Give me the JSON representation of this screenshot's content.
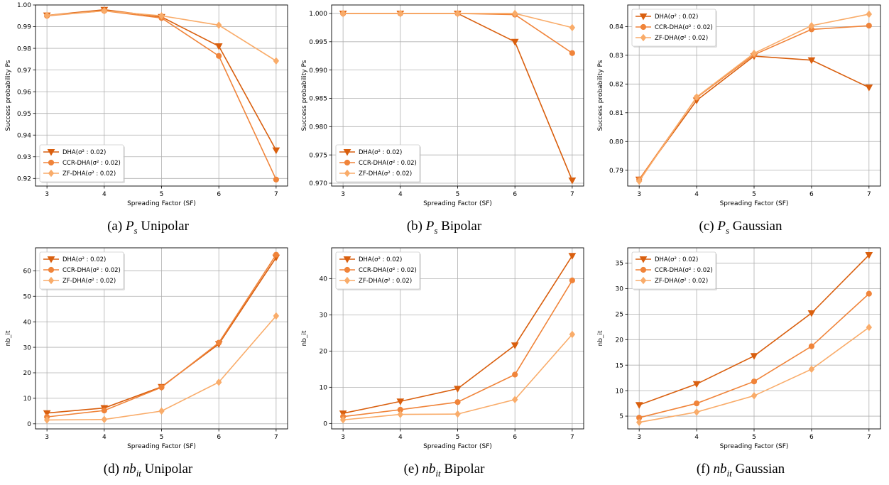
{
  "colors": {
    "dha": "#d95f0e",
    "ccr": "#f0843a",
    "zf": "#f9ac6a",
    "grid": "#b0b0b0"
  },
  "legend": [
    "DHA(σ² : 0.02)",
    "CCR-DHA(σ² : 0.02)",
    "ZF-DHA(σ² : 0.02)"
  ],
  "chart_data": [
    {
      "type": "line",
      "caption": {
        "label": "(a)",
        "sym": "P",
        "sub": "s",
        "text": "Unipolar"
      },
      "xlabel": "Spreading Factor (SF)",
      "ylabel": "Success probability Ps",
      "x": [
        3,
        4,
        5,
        6,
        7
      ],
      "xticks": [
        "3",
        "4",
        "5",
        "6",
        "7"
      ],
      "ylim": [
        0.9165,
        1.0
      ],
      "yticks": [
        "0.92",
        "0.93",
        "0.94",
        "0.95",
        "0.96",
        "0.97",
        "0.98",
        "0.99",
        "1.00"
      ],
      "grid": true,
      "legend_pos": "lower-left",
      "series": [
        {
          "name": "DHA(σ² : 0.02)",
          "values": [
            0.9952,
            0.9978,
            0.9945,
            0.981,
            0.933
          ]
        },
        {
          "name": "CCR-DHA(σ² : 0.02)",
          "values": [
            0.995,
            0.9973,
            0.994,
            0.9765,
            0.9195
          ]
        },
        {
          "name": "ZF-DHA(σ² : 0.02)",
          "values": [
            0.9952,
            0.9973,
            0.995,
            0.9907,
            0.9742
          ]
        }
      ]
    },
    {
      "type": "line",
      "caption": {
        "label": "(b)",
        "sym": "P",
        "sub": "s",
        "text": "Bipolar"
      },
      "xlabel": "Spreading Factor (SF)",
      "ylabel": "Success probability Ps",
      "x": [
        3,
        4,
        5,
        6,
        7
      ],
      "xticks": [
        "3",
        "4",
        "5",
        "6",
        "7"
      ],
      "ylim": [
        0.9695,
        1.0015
      ],
      "yticks": [
        "0.970",
        "0.975",
        "0.980",
        "0.985",
        "0.990",
        "0.995",
        "1.000"
      ],
      "grid": true,
      "legend_pos": "lower-left",
      "series": [
        {
          "name": "DHA(σ² : 0.02)",
          "values": [
            1.0,
            1.0,
            1.0,
            0.995,
            0.9705
          ]
        },
        {
          "name": "CCR-DHA(σ² : 0.02)",
          "values": [
            1.0,
            1.0,
            1.0,
            0.9998,
            0.993
          ]
        },
        {
          "name": "ZF-DHA(σ² : 0.02)",
          "values": [
            1.0,
            1.0,
            1.0,
            1.0,
            0.9975
          ]
        }
      ]
    },
    {
      "type": "line",
      "caption": {
        "label": "(c)",
        "sym": "P",
        "sub": "s",
        "text": "Gaussian"
      },
      "xlabel": "Spreading Factor (SF)",
      "ylabel": "Success probability Ps",
      "x": [
        3,
        4,
        5,
        6,
        7
      ],
      "xticks": [
        "3",
        "4",
        "5",
        "6",
        "7"
      ],
      "ylim": [
        0.7845,
        0.8475
      ],
      "yticks": [
        "0.79",
        "0.80",
        "0.81",
        "0.82",
        "0.83",
        "0.84"
      ],
      "grid": true,
      "legend_pos": "upper-left",
      "series": [
        {
          "name": "DHA(σ² : 0.02)",
          "values": [
            0.7868,
            0.8143,
            0.8297,
            0.8283,
            0.8188
          ]
        },
        {
          "name": "CCR-DHA(σ² : 0.02)",
          "values": [
            0.7868,
            0.8153,
            0.8302,
            0.839,
            0.8403
          ]
        },
        {
          "name": "ZF-DHA(σ² : 0.02)",
          "values": [
            0.7862,
            0.8155,
            0.8307,
            0.8403,
            0.8443
          ]
        }
      ]
    },
    {
      "type": "line",
      "caption": {
        "label": "(d)",
        "sym": "nb",
        "sub": "it",
        "text": "Unipolar"
      },
      "xlabel": "Spreading Factor (SF)",
      "ylabel": "nb_it",
      "x": [
        3,
        4,
        5,
        6,
        7
      ],
      "xticks": [
        "3",
        "4",
        "5",
        "6",
        "7"
      ],
      "ylim": [
        -2,
        69
      ],
      "yticks": [
        "0",
        "10",
        "20",
        "30",
        "40",
        "50",
        "60"
      ],
      "grid": true,
      "legend_pos": "upper-left",
      "series": [
        {
          "name": "DHA(σ² : 0.02)",
          "values": [
            4.2,
            6.2,
            14.5,
            31.3,
            65.2
          ]
        },
        {
          "name": "CCR-DHA(σ² : 0.02)",
          "values": [
            2.7,
            5.2,
            14.3,
            31.8,
            66.3
          ]
        },
        {
          "name": "ZF-DHA(σ² : 0.02)",
          "values": [
            1.5,
            1.7,
            5.0,
            16.3,
            42.3
          ]
        }
      ]
    },
    {
      "type": "line",
      "caption": {
        "label": "(e)",
        "sym": "nb",
        "sub": "it",
        "text": "Bipolar"
      },
      "xlabel": "Spreading Factor (SF)",
      "ylabel": "nb_it",
      "x": [
        3,
        4,
        5,
        6,
        7
      ],
      "xticks": [
        "3",
        "4",
        "5",
        "6",
        "7"
      ],
      "ylim": [
        -1.5,
        48.5
      ],
      "yticks": [
        "0",
        "10",
        "20",
        "30",
        "40"
      ],
      "grid": true,
      "legend_pos": "upper-left",
      "series": [
        {
          "name": "DHA(σ² : 0.02)",
          "values": [
            2.8,
            6.1,
            9.6,
            21.6,
            46.3
          ]
        },
        {
          "name": "CCR-DHA(σ² : 0.02)",
          "values": [
            1.9,
            3.8,
            5.9,
            13.5,
            39.5
          ]
        },
        {
          "name": "ZF-DHA(σ² : 0.02)",
          "values": [
            1.0,
            2.5,
            2.6,
            6.6,
            24.6
          ]
        }
      ]
    },
    {
      "type": "line",
      "caption": {
        "label": "(f)",
        "sym": "nb",
        "sub": "it",
        "text": "Gaussian"
      },
      "xlabel": "Spreading Factor (SF)",
      "ylabel": "nb_it",
      "x": [
        3,
        4,
        5,
        6,
        7
      ],
      "xticks": [
        "3",
        "4",
        "5",
        "6",
        "7"
      ],
      "ylim": [
        2.5,
        38
      ],
      "yticks": [
        "5",
        "10",
        "15",
        "20",
        "25",
        "30",
        "35"
      ],
      "grid": true,
      "legend_pos": "upper-left",
      "series": [
        {
          "name": "DHA(σ² : 0.02)",
          "values": [
            7.2,
            11.3,
            16.8,
            25.2,
            36.6
          ]
        },
        {
          "name": "CCR-DHA(σ² : 0.02)",
          "values": [
            4.7,
            7.5,
            11.8,
            18.7,
            29.0
          ]
        },
        {
          "name": "ZF-DHA(σ² : 0.02)",
          "values": [
            3.8,
            5.8,
            9.0,
            14.2,
            22.4
          ]
        }
      ]
    }
  ]
}
